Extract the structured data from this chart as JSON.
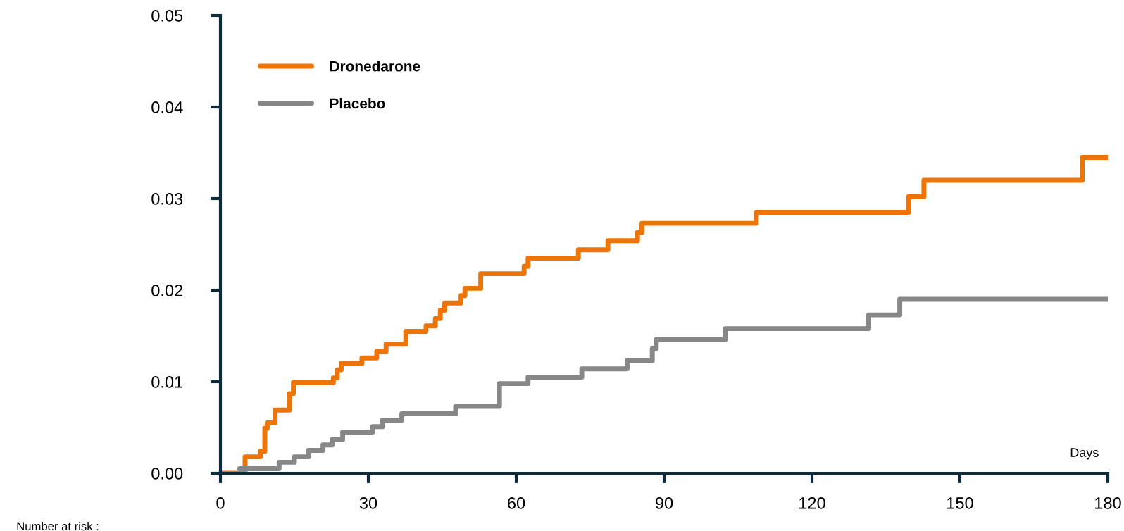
{
  "chart_data": {
    "type": "step",
    "xlim": [
      0,
      180
    ],
    "xticks": [
      0,
      30,
      60,
      90,
      120,
      150,
      180
    ],
    "ylim": [
      0,
      0.05
    ],
    "yticks": [
      {
        "value": 0,
        "label": "0.00"
      },
      {
        "value": 0.01,
        "label": "0.01"
      },
      {
        "value": 0.02,
        "label": "0.02"
      },
      {
        "value": 0.03,
        "label": "0.03"
      },
      {
        "value": 0.04,
        "label": "0.04"
      },
      {
        "value": 0.05,
        "label": "0.05"
      }
    ],
    "grid": false,
    "legend": "top left",
    "marker": "none",
    "line_style": "solid",
    "series": [
      {
        "name": "Dronedarone",
        "color": "#ed7508",
        "x": [
          0,
          5.0,
          8.1,
          9.0,
          9.5,
          11.1,
          14.0,
          14.8,
          22.9,
          23.7,
          24.5,
          28.7,
          31.7,
          33.6,
          37.6,
          41.7,
          43.6,
          44.6,
          45.5,
          48.8,
          49.6,
          52.8,
          61.6,
          62.4,
          72.6,
          78.6,
          84.6,
          85.5,
          108.7,
          139.6,
          142.7,
          174.8,
          180
        ],
        "values": [
          0,
          0.0018,
          0.0024,
          0.0049,
          0.0055,
          0.0069,
          0.0087,
          0.0099,
          0.0104,
          0.0113,
          0.012,
          0.0126,
          0.0133,
          0.0141,
          0.0155,
          0.0161,
          0.0169,
          0.0178,
          0.0186,
          0.0194,
          0.0202,
          0.0218,
          0.0226,
          0.0235,
          0.0244,
          0.0254,
          0.0263,
          0.0273,
          0.0285,
          0.0302,
          0.032,
          0.0345,
          0.0345
        ]
      },
      {
        "name": "Placebo",
        "color": "#878787",
        "x": [
          3.9,
          11.9,
          15.0,
          17.9,
          20.8,
          22.7,
          24.8,
          30.9,
          32.9,
          36.8,
          47.7,
          56.6,
          62.4,
          73.3,
          82.5,
          87.6,
          88.4,
          102.4,
          131.5,
          137.8,
          180
        ],
        "values": [
          0.0005,
          0.0012,
          0.0018,
          0.0025,
          0.0031,
          0.0037,
          0.0045,
          0.0051,
          0.0058,
          0.0065,
          0.0073,
          0.0098,
          0.0105,
          0.0114,
          0.0123,
          0.0136,
          0.0146,
          0.0158,
          0.0173,
          0.019,
          0.019
        ]
      }
    ],
    "annotations": [
      "Days",
      "Number at risk :"
    ]
  }
}
